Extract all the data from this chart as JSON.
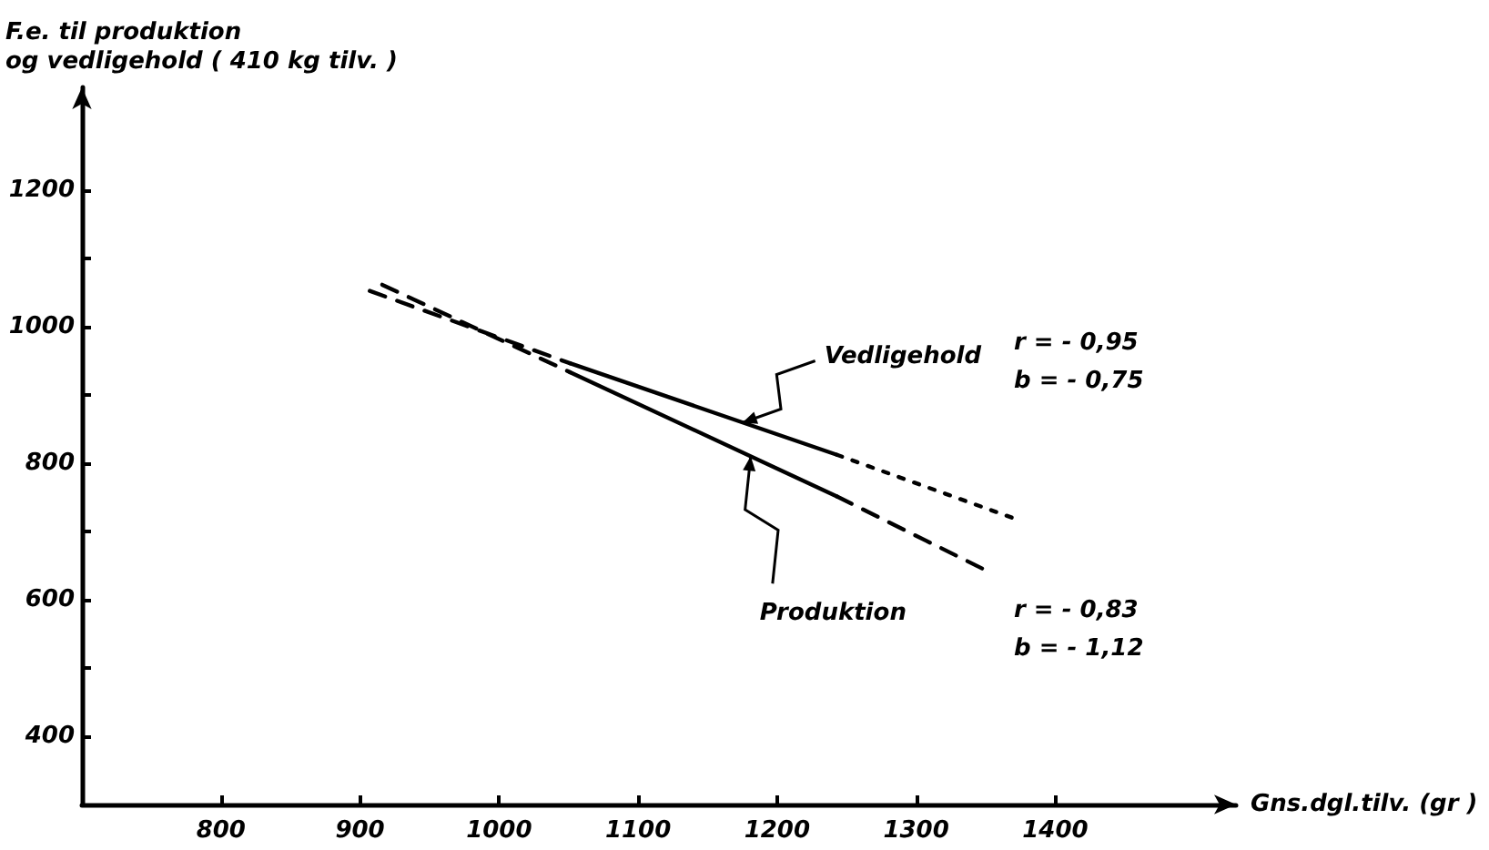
{
  "chart_data": {
    "type": "line",
    "xlabel": "Gns.dgl.tilv. (gr )",
    "ylabel": "F.e. til produktion\nog vedligehold ( 410 kg tilv. )",
    "xlim": [
      700,
      1530
    ],
    "ylim": [
      300,
      1350
    ],
    "xticks": [
      800,
      900,
      1000,
      1100,
      1200,
      1300,
      1400
    ],
    "yticks": [
      400,
      {
        "value": 500,
        "label": null
      },
      600,
      {
        "value": 700,
        "label": null
      },
      800,
      {
        "value": 900,
        "label": null
      },
      1000,
      {
        "value": 1100,
        "label": null
      },
      1200
    ],
    "marker": "none",
    "series": [
      {
        "color": "#000000",
        "line_style": "dashed",
        "x": [
          907,
          1051
        ],
        "values": [
          1052,
          946
        ]
      },
      {
        "color": "#000000",
        "line_style": "solid",
        "x": [
          1051,
          1243
        ],
        "values": [
          946,
          812
        ]
      },
      {
        "color": "#000000",
        "line_style": "dotted",
        "x": [
          1243,
          1373
        ],
        "values": [
          812,
          717
        ]
      },
      {
        "color": "#000000",
        "line_style": "dashed",
        "x": [
          916,
          1051
        ],
        "values": [
          1061,
          933
        ]
      },
      {
        "color": "#000000",
        "line_style": "solid",
        "x": [
          1051,
          1243
        ],
        "values": [
          933,
          751
        ]
      },
      {
        "color": "#000000",
        "line_style": "dashed",
        "x": [
          1243,
          1350
        ],
        "values": [
          751,
          643
        ]
      }
    ],
    "annotations": [
      {
        "text": "Vedligehold",
        "x": 1175,
        "y": 859
      },
      {
        "text": "Produktion",
        "x": 1181,
        "y": 810
      },
      "r = - 0,95\nb = - 0,75",
      "r = - 0,83\nb = - 1,12"
    ]
  }
}
